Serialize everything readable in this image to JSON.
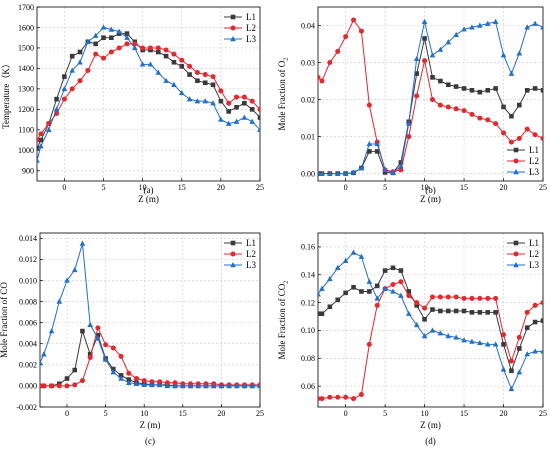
{
  "colors": {
    "L1": "#3a3a3a",
    "L2": "#e8262b",
    "L3": "#1f6fd1"
  },
  "markers": {
    "L1": "square",
    "L2": "circle",
    "L3": "triangle"
  },
  "chart_data": [
    {
      "type": "line",
      "panel": "(a)",
      "xlabel": "Z (m)",
      "ylabel": "Temperature（K）",
      "xlim": [
        -3.5,
        25
      ],
      "ylim": [
        850,
        1700
      ],
      "xticks": [
        0,
        5,
        10,
        15,
        20,
        25
      ],
      "yticks": [
        900,
        1000,
        1100,
        1200,
        1300,
        1400,
        1500,
        1600,
        1700
      ],
      "ytick_labels": [
        "900",
        "1000",
        "1100",
        "1200",
        "1300",
        "1400",
        "1500",
        "1600",
        "1700"
      ],
      "grid": true,
      "legend_position": "top-right",
      "x": [
        -3.5,
        -3,
        -2,
        -1,
        0,
        1,
        2,
        3,
        4,
        5,
        6,
        7,
        8,
        9,
        10,
        11,
        12,
        13,
        14,
        15,
        16,
        17,
        18,
        19,
        20,
        21,
        22,
        23,
        24,
        25
      ],
      "series": [
        {
          "name": "L1",
          "values": [
            1010,
            1050,
            1130,
            1250,
            1360,
            1460,
            1480,
            1530,
            1520,
            1550,
            1550,
            1570,
            1570,
            1530,
            1490,
            1490,
            1480,
            1460,
            1430,
            1410,
            1370,
            1340,
            1330,
            1320,
            1240,
            1190,
            1210,
            1230,
            1200,
            1160
          ]
        },
        {
          "name": "L2",
          "values": [
            1050,
            1080,
            1130,
            1180,
            1250,
            1300,
            1340,
            1390,
            1470,
            1450,
            1480,
            1500,
            1520,
            1520,
            1500,
            1500,
            1500,
            1490,
            1470,
            1440,
            1410,
            1380,
            1370,
            1360,
            1290,
            1230,
            1260,
            1260,
            1240,
            1200
          ]
        },
        {
          "name": "L3",
          "values": [
            950,
            1020,
            1100,
            1200,
            1300,
            1390,
            1430,
            1530,
            1560,
            1600,
            1590,
            1580,
            1550,
            1500,
            1420,
            1420,
            1380,
            1340,
            1320,
            1280,
            1250,
            1240,
            1240,
            1230,
            1150,
            1130,
            1140,
            1160,
            1140,
            1100
          ]
        }
      ]
    },
    {
      "type": "line",
      "panel": "(b)",
      "xlabel": "Z (m)",
      "ylabel": "Mole Fraction of O",
      "ylabel_sub": "2",
      "xlim": [
        -3.5,
        25
      ],
      "ylim": [
        -0.002,
        0.045
      ],
      "xticks": [
        0,
        5,
        10,
        15,
        20,
        25
      ],
      "yticks": [
        0,
        0.01,
        0.02,
        0.03,
        0.04
      ],
      "ytick_labels": [
        "0.00",
        "0.01",
        "0.02",
        "0.03",
        "0.04"
      ],
      "grid": true,
      "legend_position": "bottom-right",
      "x": [
        -3.5,
        -3,
        -2,
        -1,
        0,
        1,
        2,
        3,
        4,
        5,
        6,
        7,
        8,
        9,
        10,
        11,
        12,
        13,
        14,
        15,
        16,
        17,
        18,
        19,
        20,
        21,
        22,
        23,
        24,
        25
      ],
      "series": [
        {
          "name": "L1",
          "values": [
            0,
            0,
            0,
            0,
            0,
            0.0002,
            0.0015,
            0.006,
            0.006,
            0.0003,
            0.0002,
            0.003,
            0.014,
            0.027,
            0.0365,
            0.026,
            0.025,
            0.024,
            0.0235,
            0.023,
            0.0225,
            0.022,
            0.0225,
            0.023,
            0.018,
            0.0155,
            0.0185,
            0.0225,
            0.023,
            0.0225
          ]
        },
        {
          "name": "L2",
          "values": [
            0.026,
            0.025,
            0.03,
            0.033,
            0.037,
            0.0415,
            0.0385,
            0.0185,
            0.0085,
            0.001,
            0.0005,
            0.001,
            0.01,
            0.021,
            0.0305,
            0.02,
            0.0185,
            0.018,
            0.0175,
            0.017,
            0.016,
            0.015,
            0.0145,
            0.0135,
            0.011,
            0.0085,
            0.0095,
            0.012,
            0.0105,
            0.0095
          ]
        },
        {
          "name": "L3",
          "values": [
            0,
            0,
            0,
            0,
            0,
            0.0003,
            0.0015,
            0.008,
            0.008,
            0.001,
            0.0002,
            0.002,
            0.0135,
            0.031,
            0.041,
            0.032,
            0.0335,
            0.0355,
            0.0375,
            0.039,
            0.0395,
            0.04,
            0.0405,
            0.041,
            0.032,
            0.027,
            0.0325,
            0.0395,
            0.0405,
            0.0395
          ]
        }
      ]
    },
    {
      "type": "line",
      "panel": "(c)",
      "xlabel": "Z (m)",
      "ylabel": "Mole Fraction of CO",
      "xlim": [
        -3.5,
        25
      ],
      "ylim": [
        -0.002,
        0.0145
      ],
      "xticks": [
        0,
        5,
        10,
        15,
        20,
        25
      ],
      "yticks": [
        -0.002,
        0,
        0.002,
        0.004,
        0.006,
        0.008,
        0.01,
        0.012,
        0.014
      ],
      "ytick_labels": [
        "-0.002",
        "0.000",
        "0.002",
        "0.004",
        "0.006",
        "0.008",
        "0.010",
        "0.012",
        "0.014"
      ],
      "grid": true,
      "legend_position": "top-right",
      "x": [
        -3.5,
        -3,
        -2,
        -1,
        0,
        1,
        2,
        3,
        4,
        5,
        6,
        7,
        8,
        9,
        10,
        11,
        12,
        13,
        14,
        15,
        16,
        17,
        18,
        19,
        20,
        21,
        22,
        23,
        24,
        25
      ],
      "series": [
        {
          "name": "L1",
          "values": [
            0,
            0,
            0,
            0.0002,
            0.0007,
            0.0015,
            0.0052,
            0.003,
            0.0048,
            0.0026,
            0.0016,
            0.001,
            0.0006,
            0.0003,
            0.0002,
            0.0001,
            0.0001,
            0.0001,
            0,
            0,
            0,
            0,
            0,
            0,
            0,
            0,
            0,
            0,
            0,
            0
          ]
        },
        {
          "name": "L2",
          "values": [
            0,
            0,
            0,
            0,
            0,
            0.0001,
            0.0005,
            0.0027,
            0.0055,
            0.0039,
            0.0036,
            0.0028,
            0.0012,
            0.0007,
            0.0005,
            0.0004,
            0.0004,
            0.0003,
            0.0003,
            0.0002,
            0.0002,
            0.0002,
            0.0002,
            0.0002,
            0.0001,
            0.0001,
            0.0001,
            0.0001,
            0.0001,
            0.0001
          ]
        },
        {
          "name": "L3",
          "values": [
            0.0022,
            0.003,
            0.0052,
            0.008,
            0.01,
            0.011,
            0.0135,
            0.0058,
            0.0045,
            0.0025,
            0.0013,
            0.0007,
            0.0003,
            0.0002,
            0.0001,
            0.0001,
            0.0001,
            0,
            0,
            0,
            0,
            0,
            0,
            0,
            0,
            0,
            0,
            0,
            0,
            0
          ]
        }
      ]
    },
    {
      "type": "line",
      "panel": "(d)",
      "xlabel": "Z (m)",
      "ylabel": "Mole Fraction of CO",
      "ylabel_sub": "2",
      "xlim": [
        -3.5,
        25
      ],
      "ylim": [
        0.045,
        0.17
      ],
      "xticks": [
        0,
        5,
        10,
        15,
        20,
        25
      ],
      "yticks": [
        0.06,
        0.08,
        0.1,
        0.12,
        0.14,
        0.16
      ],
      "ytick_labels": [
        "0.06",
        "0.08",
        "0.10",
        "0.12",
        "0.14",
        "0.16"
      ],
      "grid": true,
      "legend_position": "top-right",
      "x": [
        -3.5,
        -3,
        -2,
        -1,
        0,
        1,
        2,
        3,
        4,
        5,
        6,
        7,
        8,
        9,
        10,
        11,
        12,
        13,
        14,
        15,
        16,
        17,
        18,
        19,
        20,
        21,
        22,
        23,
        24,
        25
      ],
      "series": [
        {
          "name": "L1",
          "values": [
            0.112,
            0.112,
            0.117,
            0.122,
            0.127,
            0.131,
            0.128,
            0.128,
            0.132,
            0.143,
            0.145,
            0.143,
            0.128,
            0.118,
            0.108,
            0.115,
            0.114,
            0.114,
            0.114,
            0.114,
            0.113,
            0.113,
            0.113,
            0.113,
            0.09,
            0.071,
            0.087,
            0.102,
            0.106,
            0.107
          ]
        },
        {
          "name": "L2",
          "values": [
            0.051,
            0.051,
            0.052,
            0.052,
            0.052,
            0.051,
            0.054,
            0.09,
            0.118,
            0.13,
            0.133,
            0.135,
            0.125,
            0.12,
            0.116,
            0.124,
            0.124,
            0.124,
            0.124,
            0.123,
            0.123,
            0.123,
            0.123,
            0.123,
            0.097,
            0.078,
            0.095,
            0.113,
            0.118,
            0.12
          ]
        },
        {
          "name": "L3",
          "values": [
            0.126,
            0.13,
            0.137,
            0.145,
            0.15,
            0.156,
            0.153,
            0.135,
            0.123,
            0.13,
            0.128,
            0.125,
            0.112,
            0.104,
            0.096,
            0.1,
            0.098,
            0.096,
            0.095,
            0.093,
            0.092,
            0.091,
            0.09,
            0.09,
            0.072,
            0.058,
            0.07,
            0.083,
            0.085,
            0.085
          ]
        }
      ]
    }
  ]
}
